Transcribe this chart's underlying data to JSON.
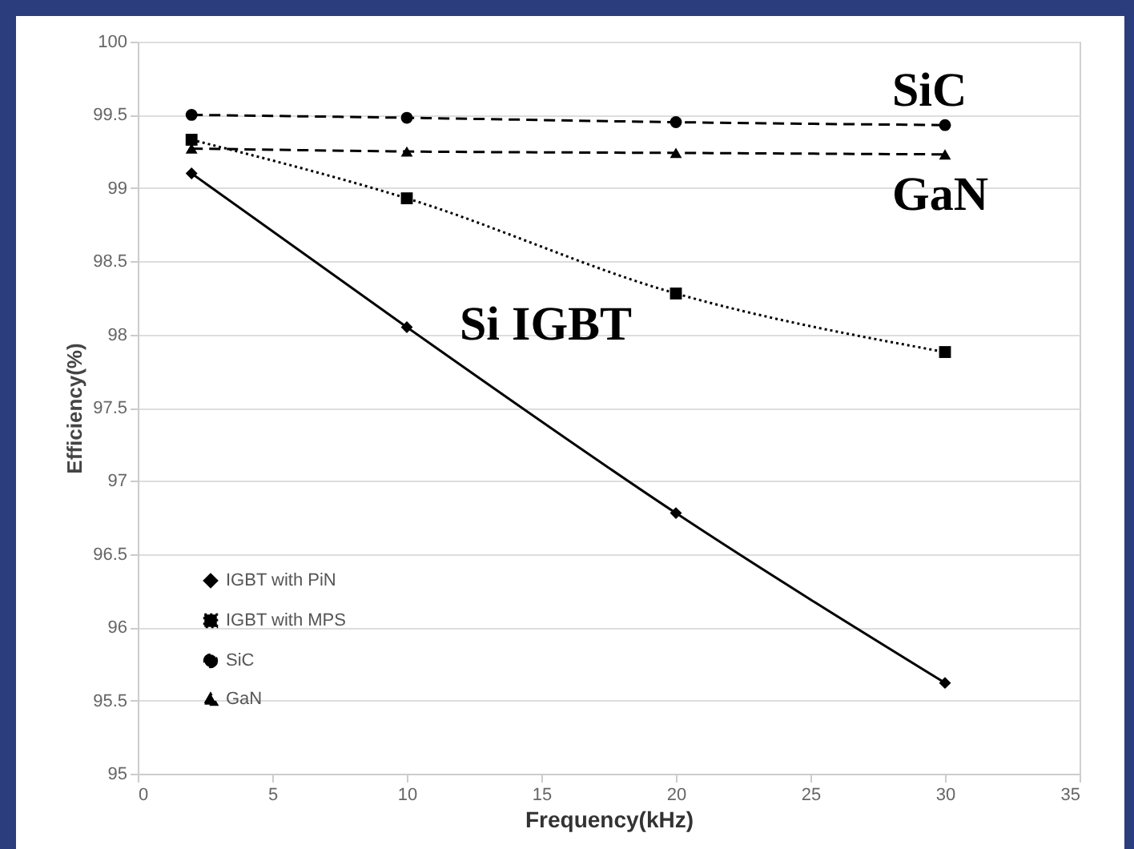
{
  "chart_data": {
    "type": "line",
    "xlabel": "Frequency(kHz)",
    "ylabel": "Efficiency(%)",
    "x": [
      2,
      10,
      20,
      30
    ],
    "series": [
      {
        "name": "IGBT with PiN",
        "color": "#000000",
        "marker": "diamond",
        "line_style": "solid",
        "values": [
          99.1,
          98.05,
          96.78,
          95.62
        ]
      },
      {
        "name": "IGBT with MPS",
        "color": "#000000",
        "marker": "square",
        "line_style": "dotted",
        "values": [
          99.33,
          98.93,
          98.28,
          97.88
        ]
      },
      {
        "name": "SiC",
        "color": "#000000",
        "marker": "circle",
        "line_style": "dashed",
        "values": [
          99.5,
          99.48,
          99.45,
          99.43
        ]
      },
      {
        "name": "GaN",
        "color": "#000000",
        "marker": "triangle",
        "line_style": "dashed",
        "values": [
          99.27,
          99.25,
          99.24,
          99.23
        ]
      }
    ],
    "xlim": [
      0,
      35
    ],
    "xticks": [
      0,
      5,
      10,
      15,
      20,
      25,
      30,
      35
    ],
    "ylim": [
      95,
      100
    ],
    "yticks": [
      95,
      95.5,
      96,
      96.5,
      97,
      97.5,
      98,
      98.5,
      99,
      99.5,
      100
    ],
    "grid": "y",
    "legend": "bottom left",
    "annotations": [
      "SiC",
      "GaN",
      "Si IGBT"
    ]
  }
}
